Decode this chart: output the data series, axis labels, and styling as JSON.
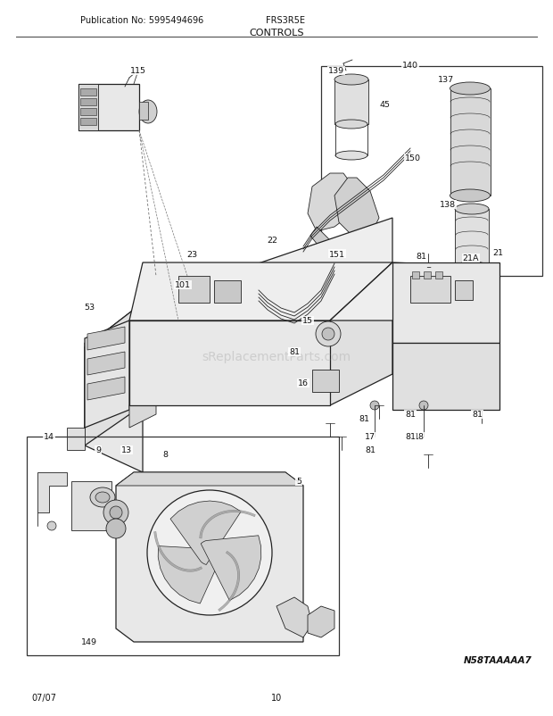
{
  "title": "CONTROLS",
  "pub_no": "Publication No: 5995494696",
  "model": "FRS3R5E",
  "date": "07/07",
  "page": "10",
  "watermark": "sReplacementParts.com",
  "diagram_id": "N58TAAAAA7",
  "bg_color": "#ffffff",
  "text_color": "#111111",
  "line_color": "#222222",
  "lw_thin": 0.6,
  "lw_med": 0.9,
  "lw_thick": 1.2,
  "part_color": "#111111",
  "fill_light": "#e8e8e8",
  "fill_mid": "#cccccc",
  "fill_dark": "#aaaaaa"
}
